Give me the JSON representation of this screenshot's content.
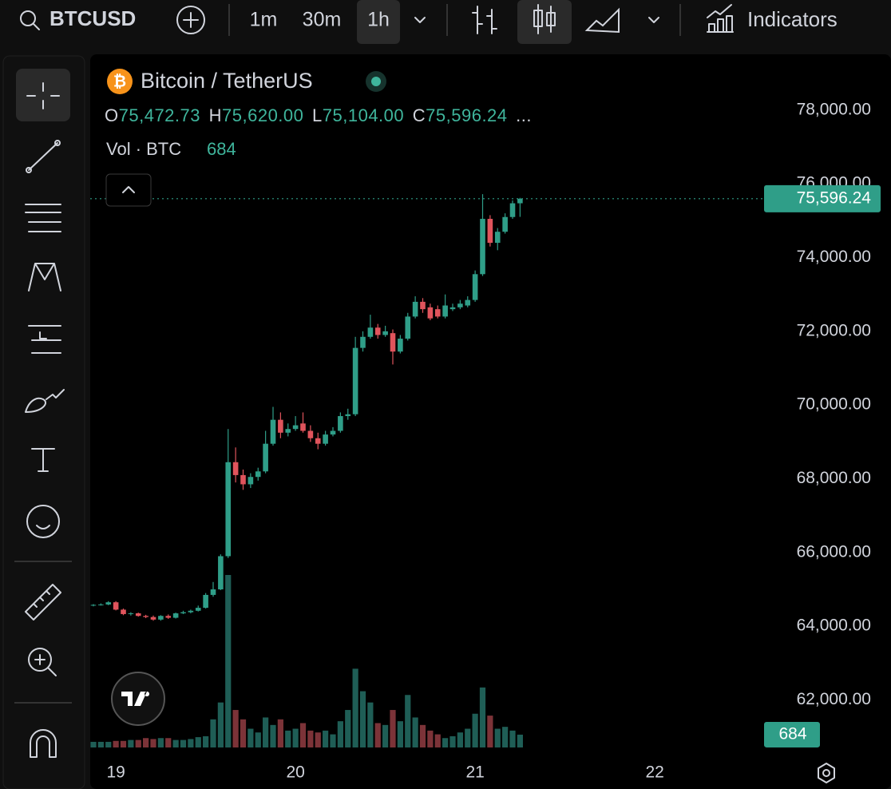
{
  "toolbar": {
    "symbol": "BTCUSD",
    "intervals": [
      "1m",
      "30m",
      "1h"
    ],
    "indicators": "Indicators"
  },
  "legend": {
    "name": "Bitcoin / TetherUS",
    "ohlc": [
      {
        "key": "O",
        "value": "75,472.73"
      },
      {
        "key": "H",
        "value": "75,620.00"
      },
      {
        "key": "L",
        "value": "75,104.00"
      },
      {
        "key": "C",
        "value": "75,596.24"
      }
    ],
    "more": "...",
    "volume_label": "Vol · BTC",
    "volume_value": "684"
  },
  "chart_data": {
    "type": "candlestick",
    "categories": [
      null,
      null,
      null,
      "19",
      null,
      null,
      null,
      null,
      null,
      null,
      null,
      null,
      null,
      null,
      null,
      null,
      null,
      null,
      null,
      null,
      null,
      null,
      null,
      null,
      null,
      null,
      null,
      "20",
      null,
      null,
      null,
      null,
      null,
      null,
      null,
      null,
      null,
      null,
      null,
      null,
      null,
      null,
      null,
      null,
      null,
      null,
      null,
      null,
      null,
      null,
      null,
      "21",
      null,
      null,
      null,
      null,
      null,
      null,
      null,
      null,
      null,
      null,
      null,
      null,
      null,
      null,
      null,
      null,
      null,
      null,
      null,
      null,
      null,
      null,
      null,
      "22"
    ],
    "open": [
      64560,
      64580,
      64590,
      64650,
      64450,
      64330,
      64350,
      64280,
      64250,
      64180,
      64280,
      64230,
      64350,
      64380,
      64420,
      64500,
      64850,
      65000,
      65900,
      68450,
      68100,
      67850,
      68050,
      68200,
      68950,
      69600,
      69250,
      69350,
      69500,
      69300,
      69100,
      68950,
      69200,
      69300,
      69700,
      69750,
      71550,
      71850,
      72100,
      71900,
      71950,
      71450,
      71800,
      72400,
      72800,
      72650,
      72600,
      72400,
      72600,
      72650,
      72700,
      72850,
      73550,
      75050,
      74400,
      74700,
      75100,
      75472.73,
      null,
      null,
      null,
      null,
      null,
      null,
      null,
      null,
      null,
      null,
      null,
      null,
      null,
      null,
      null,
      null,
      null,
      null
    ],
    "high": [
      64600,
      64620,
      64680,
      64680,
      64480,
      64380,
      64370,
      64310,
      64290,
      64300,
      64320,
      64370,
      64420,
      64450,
      64560,
      64900,
      65200,
      65950,
      69350,
      68850,
      68250,
      68150,
      68300,
      69300,
      69950,
      69800,
      69500,
      69700,
      69800,
      69450,
      69250,
      69300,
      69400,
      69800,
      69900,
      71850,
      72000,
      72450,
      72200,
      72150,
      72050,
      71900,
      72500,
      72950,
      72900,
      72750,
      72700,
      73000,
      72750,
      72850,
      72950,
      73650,
      75720,
      75150,
      74800,
      75200,
      75550,
      75620,
      null,
      null,
      null,
      null,
      null,
      null,
      null,
      null,
      null,
      null,
      null,
      null,
      null,
      null,
      null,
      null,
      null,
      null
    ],
    "low": [
      64540,
      64560,
      64570,
      64430,
      64300,
      64290,
      64260,
      64220,
      64150,
      64150,
      64200,
      64210,
      64330,
      64350,
      64400,
      64480,
      64800,
      64980,
      65850,
      67900,
      67700,
      67750,
      67950,
      68150,
      68900,
      69100,
      69150,
      69300,
      69250,
      69000,
      68800,
      68900,
      69150,
      69250,
      69600,
      69700,
      71450,
      71800,
      71800,
      71850,
      71100,
      71400,
      71750,
      72350,
      72500,
      72300,
      72350,
      72350,
      72550,
      72600,
      72650,
      72800,
      73500,
      74300,
      74200,
      74650,
      75050,
      75104,
      null,
      null,
      null,
      null,
      null,
      null,
      null,
      null,
      null,
      null,
      null,
      null,
      null,
      null,
      null,
      null,
      null,
      null
    ],
    "close": [
      64580,
      64590,
      64650,
      64450,
      64330,
      64350,
      64280,
      64250,
      64180,
      64280,
      64230,
      64350,
      64380,
      64420,
      64500,
      64850,
      65000,
      65900,
      68450,
      68100,
      67850,
      68050,
      68200,
      68950,
      69600,
      69250,
      69350,
      69450,
      69300,
      69100,
      68950,
      69200,
      69300,
      69700,
      69750,
      71550,
      71850,
      72100,
      71900,
      72000,
      71450,
      71800,
      72400,
      72800,
      72600,
      72350,
      72400,
      72700,
      72650,
      72750,
      72850,
      73550,
      75050,
      74400,
      74700,
      75100,
      75472.73,
      75596.24,
      null,
      null,
      null,
      null,
      null,
      null,
      null,
      null,
      null,
      null,
      null,
      null,
      null,
      null,
      null,
      null,
      null,
      null
    ],
    "volume": [
      300,
      300,
      300,
      350,
      350,
      400,
      400,
      500,
      450,
      500,
      500,
      400,
      400,
      450,
      550,
      600,
      1500,
      2400,
      9200,
      2000,
      1500,
      1000,
      800,
      1600,
      1200,
      1500,
      900,
      1000,
      1300,
      900,
      800,
      900,
      700,
      1400,
      2000,
      4200,
      3000,
      2400,
      1300,
      1200,
      2000,
      1400,
      2800,
      1600,
      1200,
      900,
      700,
      500,
      600,
      800,
      1000,
      1800,
      3200,
      1700,
      1000,
      1100,
      900,
      684,
      null,
      null,
      null,
      null,
      null,
      null,
      null,
      null,
      null,
      null,
      null,
      null,
      null,
      null,
      null,
      null,
      null,
      null
    ],
    "ylim": [
      60300,
      79470
    ],
    "yticks": [
      {
        "value": 62000,
        "label": "62,000.00"
      },
      {
        "value": 64000,
        "label": "64,000.00"
      },
      {
        "value": 66000,
        "label": "66,000.00"
      },
      {
        "value": 68000,
        "label": "68,000.00"
      },
      {
        "value": 70000,
        "label": "70,000.00"
      },
      {
        "value": 72000,
        "label": "72,000.00"
      },
      {
        "value": 74000,
        "label": "74,000.00"
      },
      {
        "value": 76000,
        "label": "76,000.00"
      },
      {
        "value": 78000,
        "label": "78,000.00"
      }
    ],
    "price_label": "75,596.24",
    "volume_label": "684",
    "up_color": "#2f9e88",
    "down_color": "#e0545c",
    "up_volume_color": "#1f5e56",
    "down_volume_color": "#7c3338"
  }
}
